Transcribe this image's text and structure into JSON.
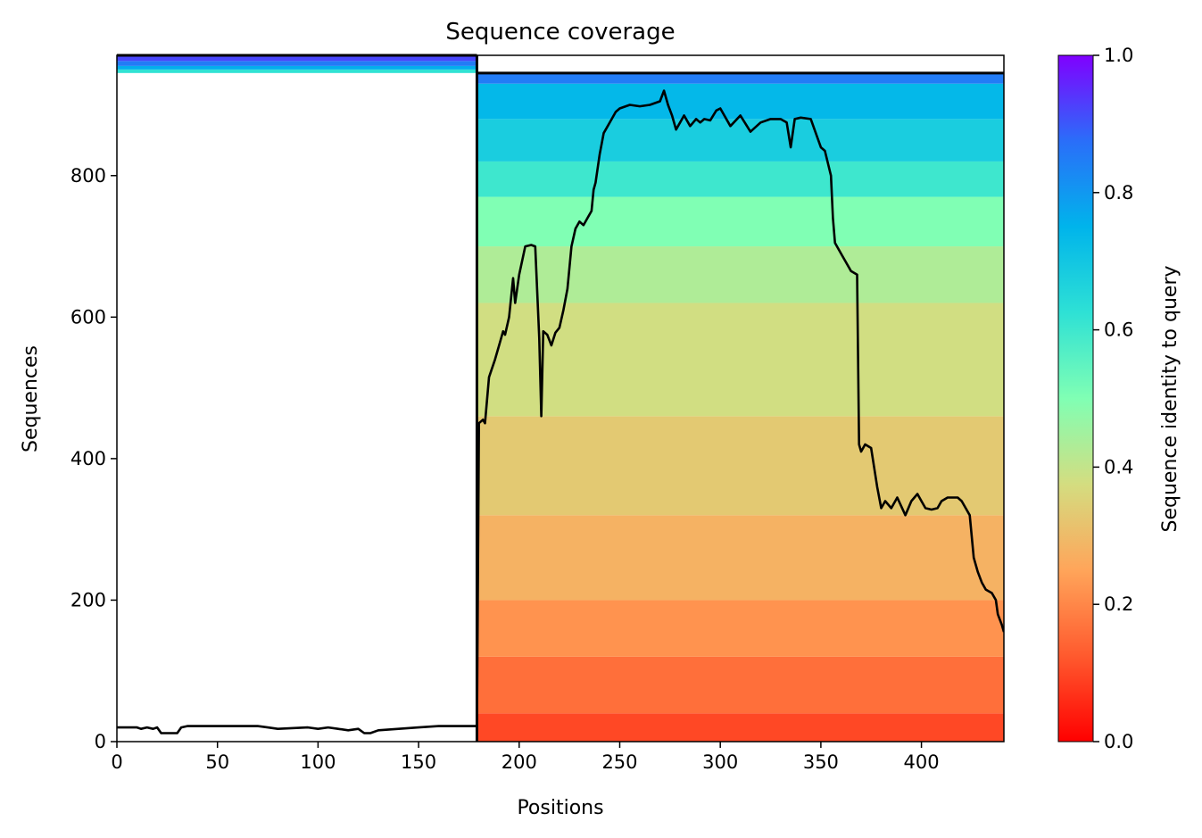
{
  "chart_data": {
    "type": "heatmap",
    "title": "Sequence coverage",
    "xlabel": "Positions",
    "ylabel": "Sequences",
    "xlim": [
      0,
      441
    ],
    "ylim": [
      0,
      970
    ],
    "x_ticks": [
      0,
      50,
      100,
      150,
      200,
      250,
      300,
      350,
      400
    ],
    "y_ticks": [
      0,
      200,
      400,
      600,
      800
    ],
    "colorbar": {
      "label": "Sequence identity to query",
      "range": [
        0,
        1
      ],
      "ticks": [
        "0.0",
        "0.2",
        "0.4",
        "0.6",
        "0.8",
        "1.0"
      ],
      "colormap": "rainbow_r"
    },
    "segments": [
      {
        "x_start": 0,
        "x_end": 179,
        "rows": [
          945,
          970
        ]
      },
      {
        "x_start": 179,
        "x_end": 441,
        "rows": [
          0,
          945
        ]
      }
    ],
    "identity_bands": [
      {
        "rows": [
          0,
          40
        ],
        "identity": 0.1
      },
      {
        "rows": [
          40,
          120
        ],
        "identity": 0.16
      },
      {
        "rows": [
          120,
          200
        ],
        "identity": 0.22
      },
      {
        "rows": [
          200,
          320
        ],
        "identity": 0.28
      },
      {
        "rows": [
          320,
          460
        ],
        "identity": 0.33
      },
      {
        "rows": [
          460,
          620
        ],
        "identity": 0.38
      },
      {
        "rows": [
          620,
          700
        ],
        "identity": 0.43
      },
      {
        "rows": [
          700,
          770
        ],
        "identity": 0.5
      },
      {
        "rows": [
          770,
          820
        ],
        "identity": 0.6
      },
      {
        "rows": [
          820,
          880
        ],
        "identity": 0.68
      },
      {
        "rows": [
          880,
          930
        ],
        "identity": 0.74
      },
      {
        "rows": [
          930,
          945
        ],
        "identity": 0.85
      },
      {
        "rows": [
          945,
          950
        ],
        "identity": 0.62
      },
      {
        "rows": [
          950,
          955
        ],
        "identity": 0.76
      },
      {
        "rows": [
          955,
          962
        ],
        "identity": 0.85
      },
      {
        "rows": [
          962,
          970
        ],
        "identity": 0.92
      }
    ],
    "series": [
      {
        "type": "line",
        "color": "#000000",
        "x": [
          0,
          10,
          12,
          15,
          18,
          20,
          22,
          30,
          32,
          35,
          60,
          70,
          75,
          80,
          95,
          100,
          105,
          110,
          115,
          120,
          123,
          126,
          130,
          140,
          150,
          160,
          170,
          178,
          179,
          180,
          182,
          183,
          185,
          188,
          190,
          192,
          193,
          195,
          197,
          198,
          200,
          203,
          206,
          208,
          210,
          211,
          212,
          214,
          216,
          218,
          220,
          222,
          224,
          226,
          228,
          230,
          232,
          234,
          236,
          237,
          238,
          240,
          242,
          244,
          246,
          248,
          250,
          255,
          260,
          265,
          270,
          272,
          274,
          276,
          278,
          280,
          282,
          285,
          288,
          290,
          292,
          295,
          298,
          300,
          305,
          310,
          315,
          320,
          325,
          330,
          333,
          335,
          337,
          340,
          345,
          350,
          352,
          355,
          356,
          357,
          360,
          362,
          365,
          368,
          369,
          370,
          372,
          375,
          378,
          380,
          382,
          385,
          388,
          392,
          395,
          398,
          400,
          402,
          405,
          408,
          410,
          413,
          418,
          420,
          422,
          424,
          426,
          428,
          430,
          432,
          435,
          437,
          438,
          440,
          441
        ],
        "y": [
          20,
          20,
          18,
          20,
          18,
          20,
          12,
          12,
          20,
          22,
          22,
          22,
          20,
          18,
          20,
          18,
          20,
          18,
          16,
          18,
          12,
          12,
          16,
          18,
          20,
          22,
          22,
          22,
          22,
          450,
          455,
          450,
          515,
          540,
          560,
          580,
          575,
          600,
          655,
          620,
          660,
          700,
          702,
          700,
          570,
          460,
          580,
          575,
          560,
          578,
          585,
          610,
          640,
          700,
          725,
          735,
          730,
          740,
          750,
          780,
          790,
          830,
          860,
          870,
          880,
          890,
          895,
          900,
          898,
          900,
          905,
          920,
          900,
          885,
          865,
          875,
          885,
          870,
          880,
          875,
          880,
          878,
          892,
          895,
          870,
          885,
          862,
          875,
          880,
          880,
          875,
          840,
          880,
          882,
          880,
          840,
          835,
          800,
          740,
          705,
          690,
          680,
          665,
          660,
          420,
          410,
          420,
          415,
          360,
          330,
          340,
          330,
          345,
          320,
          340,
          350,
          340,
          330,
          328,
          330,
          340,
          345,
          345,
          340,
          330,
          320,
          260,
          240,
          225,
          215,
          210,
          200,
          180,
          165,
          155
        ]
      }
    ]
  }
}
